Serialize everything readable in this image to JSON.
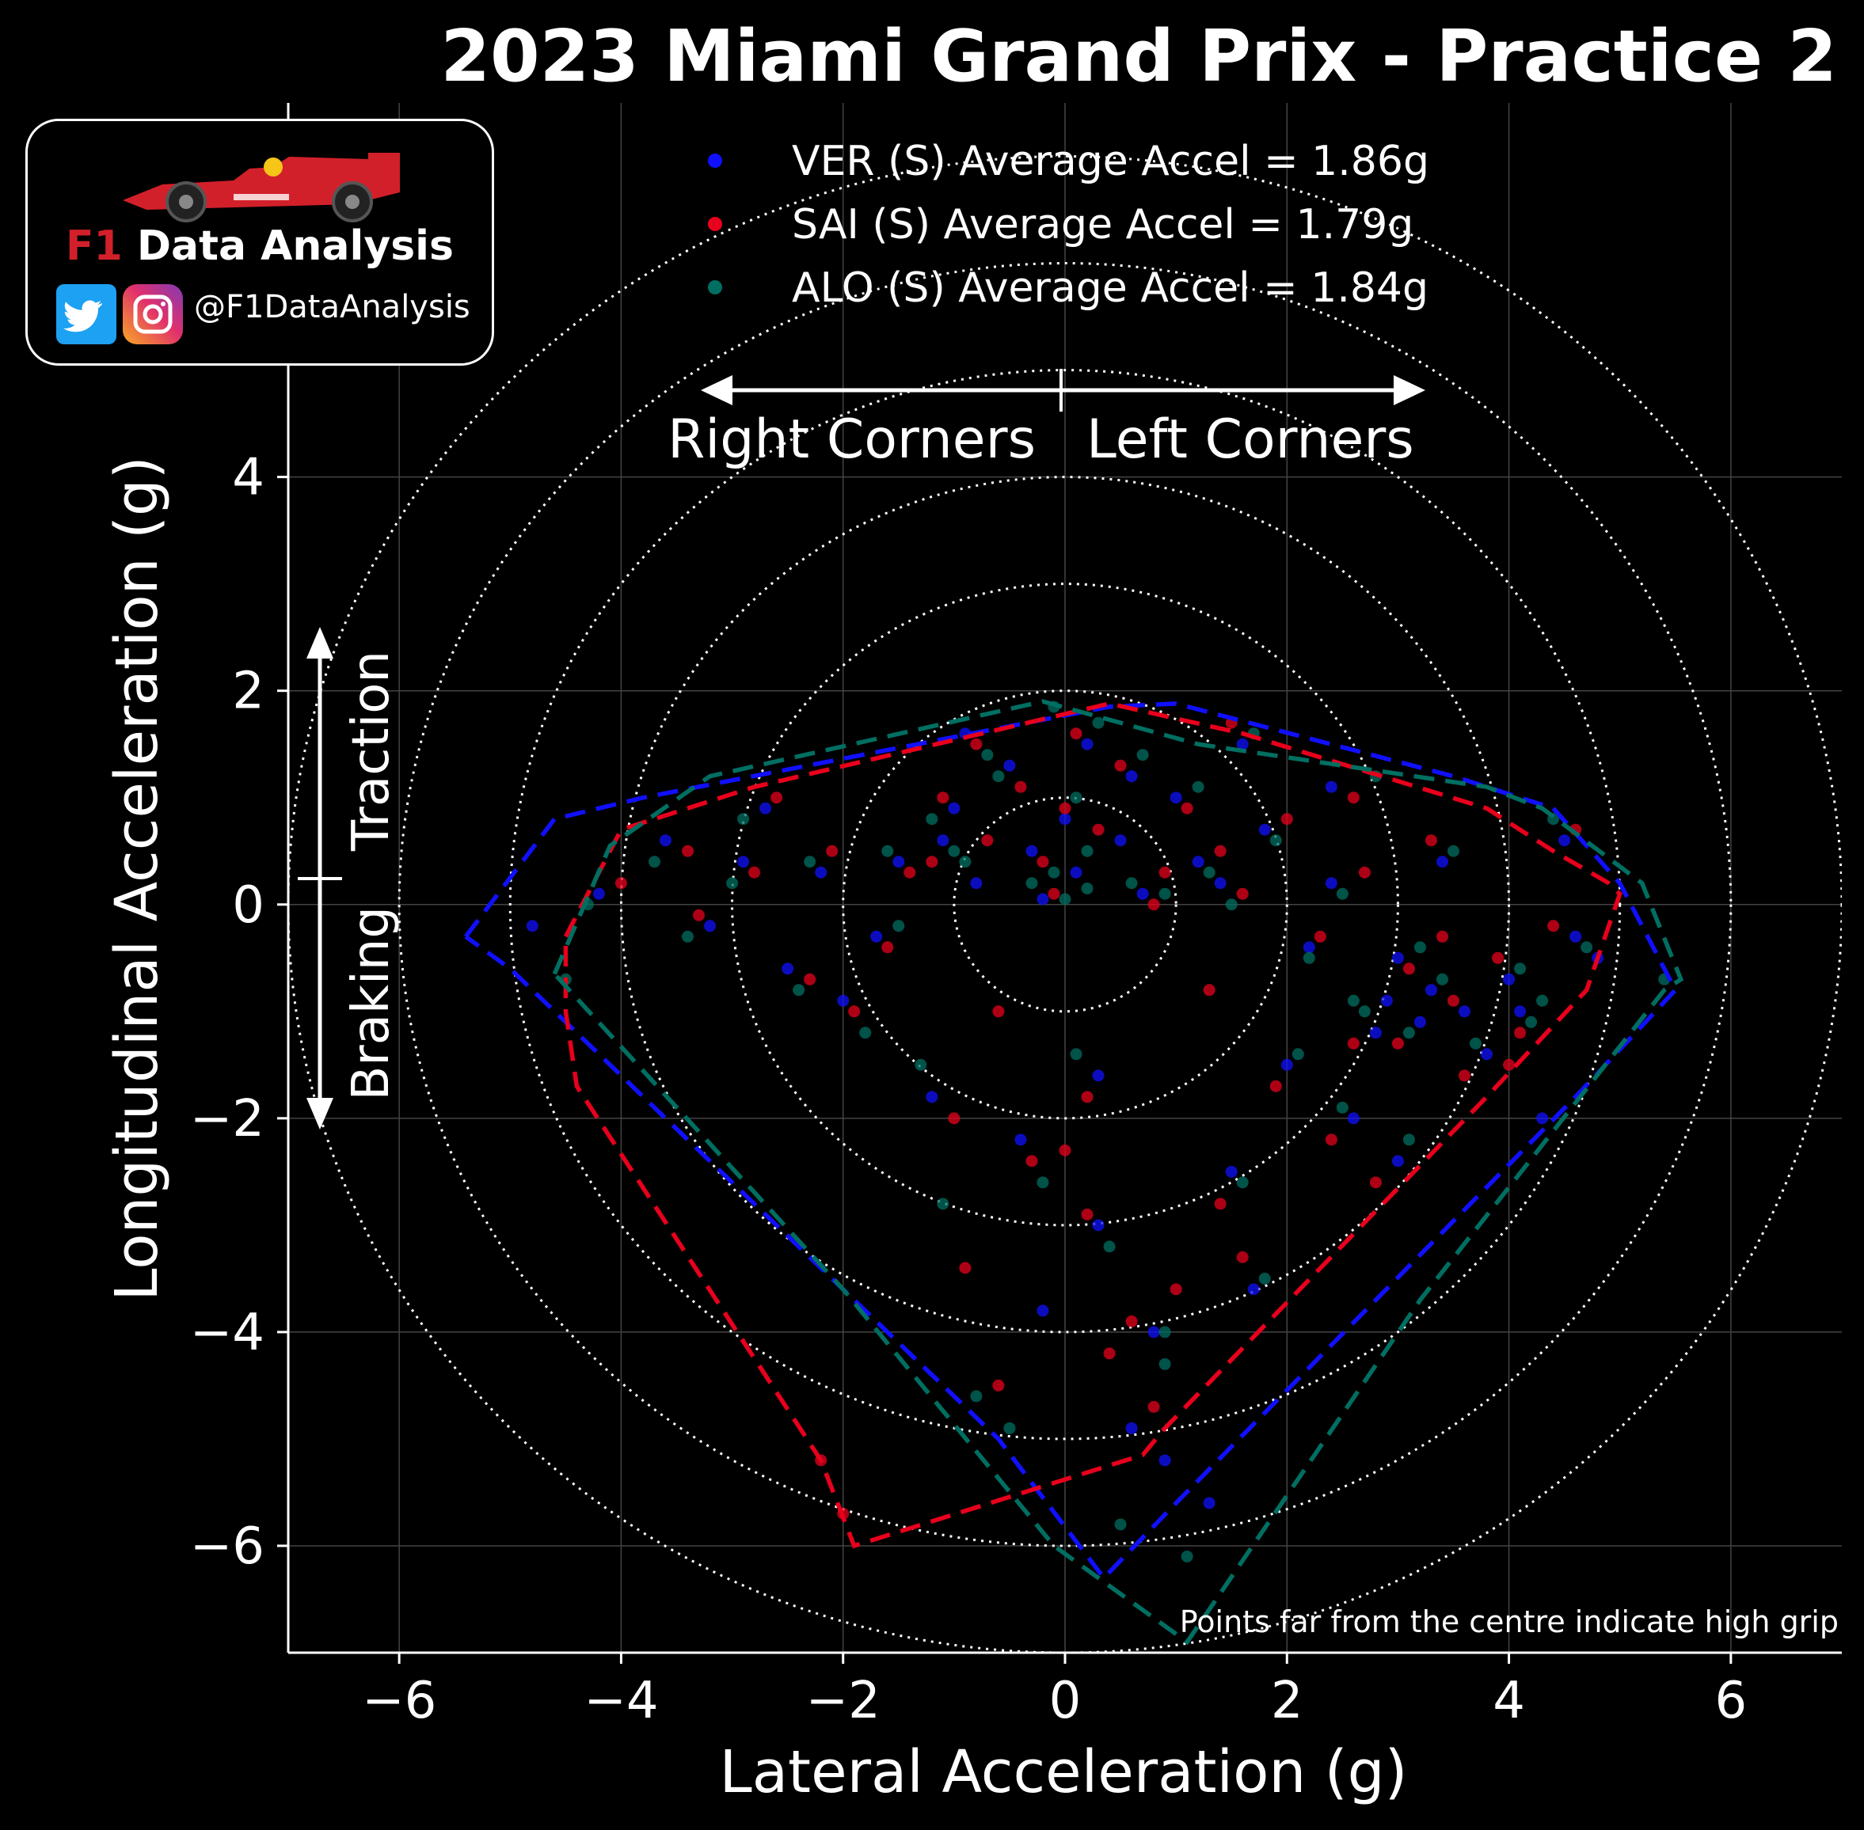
{
  "title": "2023 Miami Grand Prix - Practice 2",
  "logo": {
    "name_f1": "F1",
    "name_rest": " Data Analysis",
    "handle": "@F1DataAnalysis"
  },
  "colors": {
    "VER": "#1010ff",
    "SAI": "#e8001c",
    "ALO": "#006f62",
    "background": "#000000",
    "grid": "#444444",
    "foreground": "#ffffff"
  },
  "annotations": {
    "right_corners": "Right Corners",
    "left_corners": "Left Corners",
    "traction": "Traction",
    "braking": "Braking",
    "footnote": "Points far from the centre indicate high grip"
  },
  "chart_data": {
    "type": "scatter",
    "title": "2023 Miami Grand Prix - Practice 2",
    "xlabel": "Lateral Acceleration (g)",
    "ylabel": "Longitudinal Acceleration (g)",
    "xlim": [
      -7,
      7
    ],
    "ylim": [
      -7,
      7.5
    ],
    "xticks": [
      -6,
      -4,
      -2,
      0,
      2,
      4,
      6
    ],
    "yticks": [
      -6,
      -4,
      -2,
      0,
      2,
      4
    ],
    "xtick_labels": [
      "−6",
      "−4",
      "−2",
      "0",
      "2",
      "4",
      "6"
    ],
    "ytick_labels": [
      "−6",
      "−4",
      "−2",
      "0",
      "2",
      "4"
    ],
    "grid": true,
    "reference_circles_g": [
      1,
      2,
      3,
      4,
      5,
      6,
      7
    ],
    "legend_position": "top-center",
    "series": [
      {
        "name": "VER (S) Average Accel = 1.86g",
        "color": "#1010ff",
        "hull": [
          [
            -5.4,
            -0.3
          ],
          [
            -4.6,
            0.8
          ],
          [
            -3.8,
            1.0
          ],
          [
            0.4,
            1.85
          ],
          [
            1.0,
            1.88
          ],
          [
            3.5,
            1.2
          ],
          [
            4.4,
            0.9
          ],
          [
            5.0,
            0.2
          ],
          [
            5.5,
            -0.8
          ],
          [
            4.6,
            -1.8
          ],
          [
            1.0,
            -5.6
          ],
          [
            0.35,
            -6.3
          ],
          [
            -0.6,
            -5.0
          ],
          [
            -2.0,
            -3.6
          ],
          [
            -5.0,
            -0.6
          ],
          [
            -5.4,
            -0.3
          ]
        ],
        "points": [
          [
            -0.3,
            0.5
          ],
          [
            0.1,
            0.3
          ],
          [
            0.5,
            0.6
          ],
          [
            -0.8,
            0.2
          ],
          [
            1.2,
            0.4
          ],
          [
            1.8,
            0.7
          ],
          [
            2.4,
            0.2
          ],
          [
            3.0,
            -0.5
          ],
          [
            3.3,
            -0.8
          ],
          [
            3.6,
            -1.0
          ],
          [
            2.8,
            -1.2
          ],
          [
            4.0,
            -0.7
          ],
          [
            4.6,
            -0.3
          ],
          [
            -1.5,
            0.4
          ],
          [
            -2.2,
            0.3
          ],
          [
            -2.9,
            0.4
          ],
          [
            -3.6,
            0.6
          ],
          [
            -4.2,
            0.1
          ],
          [
            -4.8,
            -0.2
          ],
          [
            -2.5,
            -0.6
          ],
          [
            -2.0,
            -0.9
          ],
          [
            -1.2,
            -1.8
          ],
          [
            -0.4,
            -2.2
          ],
          [
            0.3,
            -3.0
          ],
          [
            0.8,
            -4.0
          ],
          [
            1.5,
            -2.5
          ],
          [
            2.0,
            -1.5
          ],
          [
            2.6,
            -2.0
          ],
          [
            3.2,
            -1.1
          ],
          [
            3.8,
            -1.4
          ],
          [
            4.3,
            -2.0
          ],
          [
            4.8,
            -0.5
          ],
          [
            0.2,
            1.5
          ],
          [
            0.6,
            1.2
          ],
          [
            -0.5,
            1.3
          ],
          [
            1.0,
            1.0
          ],
          [
            -1.0,
            0.9
          ],
          [
            0.0,
            0.8
          ],
          [
            0.9,
            -5.2
          ],
          [
            0.6,
            -4.9
          ],
          [
            1.3,
            -5.6
          ],
          [
            -0.2,
            -3.8
          ],
          [
            2.2,
            -0.4
          ],
          [
            3.4,
            0.4
          ],
          [
            -3.2,
            -0.2
          ],
          [
            -1.7,
            -0.3
          ],
          [
            1.6,
            1.5
          ],
          [
            2.4,
            1.1
          ],
          [
            -0.9,
            1.6
          ],
          [
            0.3,
            -1.6
          ],
          [
            1.7,
            -3.6
          ],
          [
            3.0,
            -2.4
          ],
          [
            4.1,
            -1.0
          ],
          [
            4.5,
            0.6
          ],
          [
            -2.7,
            0.9
          ],
          [
            -1.1,
            0.6
          ],
          [
            0.7,
            0.1
          ],
          [
            1.4,
            0.2
          ],
          [
            -0.2,
            0.05
          ],
          [
            2.9,
            -0.9
          ]
        ]
      },
      {
        "name": "SAI (S) Average Accel = 1.79g",
        "color": "#e8001c",
        "hull": [
          [
            -4.5,
            -0.3
          ],
          [
            -4.0,
            0.7
          ],
          [
            -2.8,
            1.1
          ],
          [
            0.4,
            1.88
          ],
          [
            1.6,
            1.6
          ],
          [
            3.8,
            0.9
          ],
          [
            4.4,
            0.5
          ],
          [
            4.9,
            0.2
          ],
          [
            5.0,
            0.1
          ],
          [
            4.7,
            -0.8
          ],
          [
            3.8,
            -1.8
          ],
          [
            0.9,
            -4.9
          ],
          [
            0.7,
            -5.15
          ],
          [
            -1.9,
            -6.0
          ],
          [
            -2.2,
            -5.2
          ],
          [
            -4.4,
            -1.7
          ],
          [
            -4.5,
            -1.0
          ],
          [
            -4.5,
            -0.3
          ]
        ],
        "points": [
          [
            -0.2,
            0.4
          ],
          [
            0.3,
            0.7
          ],
          [
            0.9,
            0.3
          ],
          [
            -0.7,
            0.6
          ],
          [
            1.4,
            0.5
          ],
          [
            2.0,
            0.8
          ],
          [
            2.7,
            0.3
          ],
          [
            3.1,
            -0.6
          ],
          [
            3.5,
            -0.9
          ],
          [
            2.6,
            -1.3
          ],
          [
            3.9,
            -0.5
          ],
          [
            4.4,
            -0.2
          ],
          [
            -1.4,
            0.3
          ],
          [
            -2.1,
            0.5
          ],
          [
            -2.8,
            0.3
          ],
          [
            -3.4,
            0.5
          ],
          [
            -4.0,
            0.2
          ],
          [
            -2.3,
            -0.7
          ],
          [
            -1.9,
            -1.0
          ],
          [
            -1.0,
            -2.0
          ],
          [
            -0.3,
            -2.4
          ],
          [
            0.2,
            -2.9
          ],
          [
            0.6,
            -3.9
          ],
          [
            1.4,
            -2.8
          ],
          [
            1.9,
            -1.7
          ],
          [
            2.4,
            -2.2
          ],
          [
            3.0,
            -1.3
          ],
          [
            3.6,
            -1.6
          ],
          [
            4.1,
            -1.2
          ],
          [
            0.1,
            1.6
          ],
          [
            0.5,
            1.3
          ],
          [
            -0.4,
            1.1
          ],
          [
            1.1,
            0.9
          ],
          [
            -1.1,
            1.0
          ],
          [
            0.0,
            0.9
          ],
          [
            0.8,
            -4.7
          ],
          [
            0.4,
            -4.2
          ],
          [
            -0.6,
            -4.5
          ],
          [
            -0.9,
            -3.4
          ],
          [
            -2.0,
            -5.7
          ],
          [
            -2.2,
            -5.2
          ],
          [
            1.0,
            -3.6
          ],
          [
            2.3,
            -0.3
          ],
          [
            3.3,
            0.6
          ],
          [
            -3.3,
            -0.1
          ],
          [
            -1.6,
            -0.4
          ],
          [
            1.5,
            1.7
          ],
          [
            2.6,
            1.0
          ],
          [
            -0.8,
            1.5
          ],
          [
            0.2,
            -1.8
          ],
          [
            1.6,
            -3.3
          ],
          [
            2.8,
            -2.6
          ],
          [
            4.0,
            -1.5
          ],
          [
            4.6,
            0.7
          ],
          [
            -2.6,
            1.0
          ],
          [
            -1.2,
            0.4
          ],
          [
            0.8,
            0.0
          ],
          [
            1.6,
            0.1
          ],
          [
            -0.1,
            0.1
          ],
          [
            3.4,
            -0.3
          ],
          [
            -0.6,
            -1.0
          ],
          [
            0.0,
            -2.3
          ],
          [
            1.3,
            -0.8
          ]
        ]
      },
      {
        "name": "ALO (S) Average Accel = 1.84g",
        "color": "#006f62",
        "hull": [
          [
            -4.6,
            -0.65
          ],
          [
            -4.1,
            0.55
          ],
          [
            -3.2,
            1.2
          ],
          [
            -0.2,
            1.9
          ],
          [
            1.2,
            1.5
          ],
          [
            3.8,
            1.1
          ],
          [
            4.3,
            0.9
          ],
          [
            5.2,
            0.2
          ],
          [
            5.55,
            -0.7
          ],
          [
            5.4,
            -0.8
          ],
          [
            3.2,
            -3.7
          ],
          [
            1.1,
            -6.9
          ],
          [
            -0.1,
            -6.0
          ],
          [
            -2.0,
            -3.6
          ],
          [
            -4.6,
            -0.65
          ]
        ],
        "points": [
          [
            -0.1,
            0.3
          ],
          [
            0.2,
            0.5
          ],
          [
            0.6,
            0.2
          ],
          [
            -0.9,
            0.4
          ],
          [
            1.3,
            0.3
          ],
          [
            1.9,
            0.6
          ],
          [
            2.5,
            0.1
          ],
          [
            3.2,
            -0.4
          ],
          [
            3.4,
            -0.7
          ],
          [
            2.7,
            -1.0
          ],
          [
            4.1,
            -0.6
          ],
          [
            4.7,
            -0.4
          ],
          [
            -1.6,
            0.5
          ],
          [
            -2.3,
            0.4
          ],
          [
            -3.0,
            0.2
          ],
          [
            -3.7,
            0.4
          ],
          [
            -4.3,
            0.0
          ],
          [
            -2.4,
            -0.8
          ],
          [
            -1.8,
            -1.2
          ],
          [
            -1.3,
            -1.5
          ],
          [
            -0.2,
            -2.6
          ],
          [
            0.4,
            -3.2
          ],
          [
            0.9,
            -4.3
          ],
          [
            1.6,
            -2.6
          ],
          [
            2.1,
            -1.4
          ],
          [
            2.5,
            -1.9
          ],
          [
            3.1,
            -1.2
          ],
          [
            3.7,
            -1.3
          ],
          [
            4.2,
            -1.1
          ],
          [
            0.3,
            1.7
          ],
          [
            0.7,
            1.4
          ],
          [
            -0.6,
            1.2
          ],
          [
            1.2,
            1.1
          ],
          [
            -1.2,
            0.8
          ],
          [
            0.1,
            1.0
          ],
          [
            1.1,
            -6.1
          ],
          [
            0.5,
            -5.8
          ],
          [
            -0.8,
            -4.6
          ],
          [
            -0.5,
            -4.9
          ],
          [
            0.9,
            -4.0
          ],
          [
            -1.1,
            -2.8
          ],
          [
            2.2,
            -0.5
          ],
          [
            3.5,
            0.5
          ],
          [
            -3.4,
            -0.3
          ],
          [
            -1.5,
            -0.2
          ],
          [
            1.7,
            1.6
          ],
          [
            2.8,
            1.2
          ],
          [
            -0.7,
            1.4
          ],
          [
            0.1,
            -1.4
          ],
          [
            1.8,
            -3.5
          ],
          [
            3.1,
            -2.2
          ],
          [
            4.3,
            -0.9
          ],
          [
            4.4,
            0.8
          ],
          [
            -2.9,
            0.8
          ],
          [
            -1.0,
            0.5
          ],
          [
            0.9,
            0.1
          ],
          [
            1.5,
            0.0
          ],
          [
            0.0,
            0.05
          ],
          [
            2.6,
            -0.9
          ],
          [
            -4.5,
            -0.7
          ],
          [
            5.4,
            -0.7
          ],
          [
            -0.1,
            1.85
          ],
          [
            0.2,
            0.15
          ],
          [
            -0.3,
            0.2
          ]
        ]
      }
    ]
  }
}
